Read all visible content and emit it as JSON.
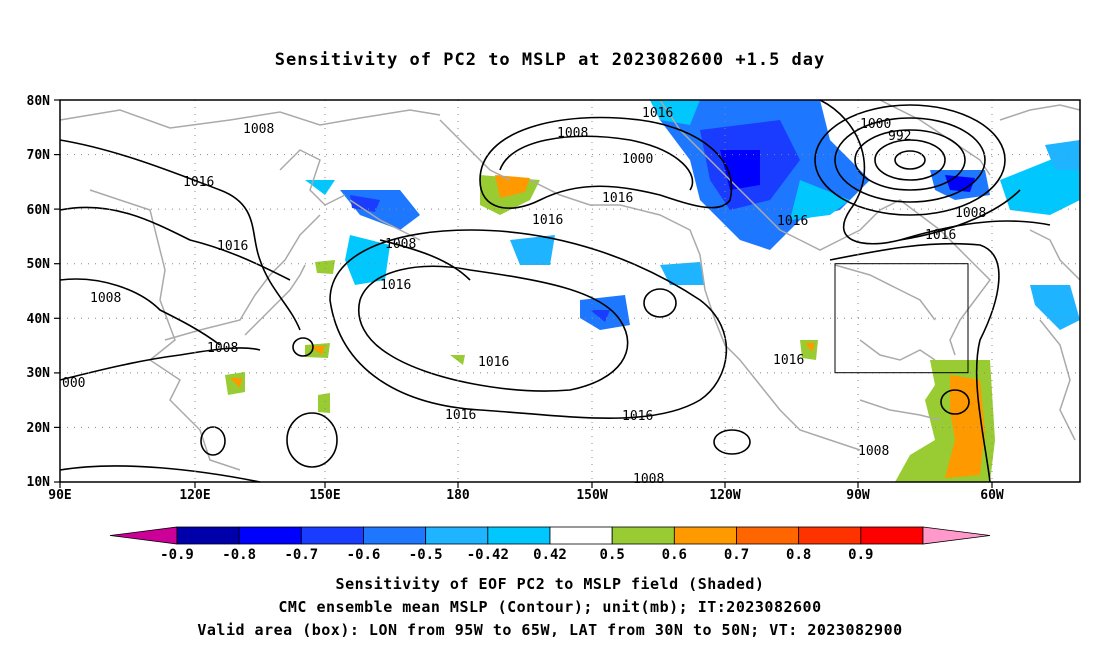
{
  "title": "Sensitivity of PC2 to MSLP at 2023082600 +1.5 day",
  "map": {
    "lat_ticks": [
      "80N",
      "70N",
      "60N",
      "50N",
      "40N",
      "30N",
      "20N",
      "10N"
    ],
    "lon_ticks": [
      "90E",
      "120E",
      "150E",
      "180",
      "150W",
      "120W",
      "90W",
      "60W"
    ],
    "box": {
      "lon_from": "95W",
      "lon_to": "65W",
      "lat_from": "30N",
      "lat_to": "50N"
    },
    "contour_labels": [
      "1008",
      "1016",
      "1016",
      "1008",
      "1008",
      "000",
      "1016",
      "1008",
      "1016",
      "1016",
      "1016",
      "1016",
      "1000",
      "1008",
      "1016",
      "1016",
      "1016",
      "1016",
      "1000",
      "992",
      "1008",
      "1016",
      "1008",
      "1008"
    ],
    "colors": {
      "coast": "#aaaaaa",
      "contour": "#000000",
      "grid": "#888888"
    }
  },
  "colorbar": {
    "labels": [
      "-0.9",
      "-0.8",
      "-0.7",
      "-0.6",
      "-0.5",
      "-0.42",
      "0.42",
      "0.5",
      "0.6",
      "0.7",
      "0.8",
      "0.9"
    ],
    "colors": [
      "#cc0099",
      "#0000aa",
      "#0000ff",
      "#1a3cff",
      "#1e78ff",
      "#1eb4ff",
      "#00c8ff",
      "#ffffff",
      "#99cc33",
      "#ff9900",
      "#ff6600",
      "#ff3300",
      "#ff0000",
      "#ff99cc"
    ]
  },
  "footer": {
    "line1": "Sensitivity of EOF PC2 to MSLP field (Shaded)",
    "line2": "CMC ensemble mean MSLP (Contour); unit(mb); IT:2023082600",
    "line3": "Valid area (box): LON from 95W to 65W, LAT from 30N to 50N; VT: 2023082900"
  }
}
